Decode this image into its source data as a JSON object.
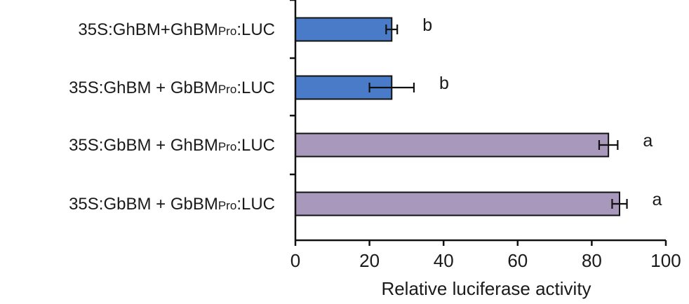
{
  "chart_data": {
    "type": "bar",
    "orientation": "horizontal",
    "title": "",
    "xlabel": "Relative luciferase activity",
    "ylabel": "",
    "xlim": [
      0,
      100
    ],
    "x_ticks": [
      0,
      20,
      40,
      60,
      80,
      100
    ],
    "grid": false,
    "legend": "none",
    "categories": [
      {
        "parts": [
          "35S:GhBM+GhBM",
          "Pro",
          ":LUC"
        ]
      },
      {
        "parts": [
          "35S:GhBM + GbBM",
          "Pro",
          ":LUC"
        ]
      },
      {
        "parts": [
          "35S:GbBM + GhBM",
          "Pro",
          ":LUC"
        ]
      },
      {
        "parts": [
          "35S:GbBM + GbBM",
          "Pro",
          ":LUC"
        ]
      }
    ],
    "values": [
      26,
      26,
      84.5,
      87.5
    ],
    "errors": [
      1.5,
      6,
      2.5,
      2
    ],
    "significance": [
      "b",
      "b",
      "a",
      "a"
    ],
    "colors": [
      "#4a7bc8",
      "#4a7bc8",
      "#a899bc",
      "#a899bc"
    ],
    "bar_edge_color": "#111111"
  }
}
